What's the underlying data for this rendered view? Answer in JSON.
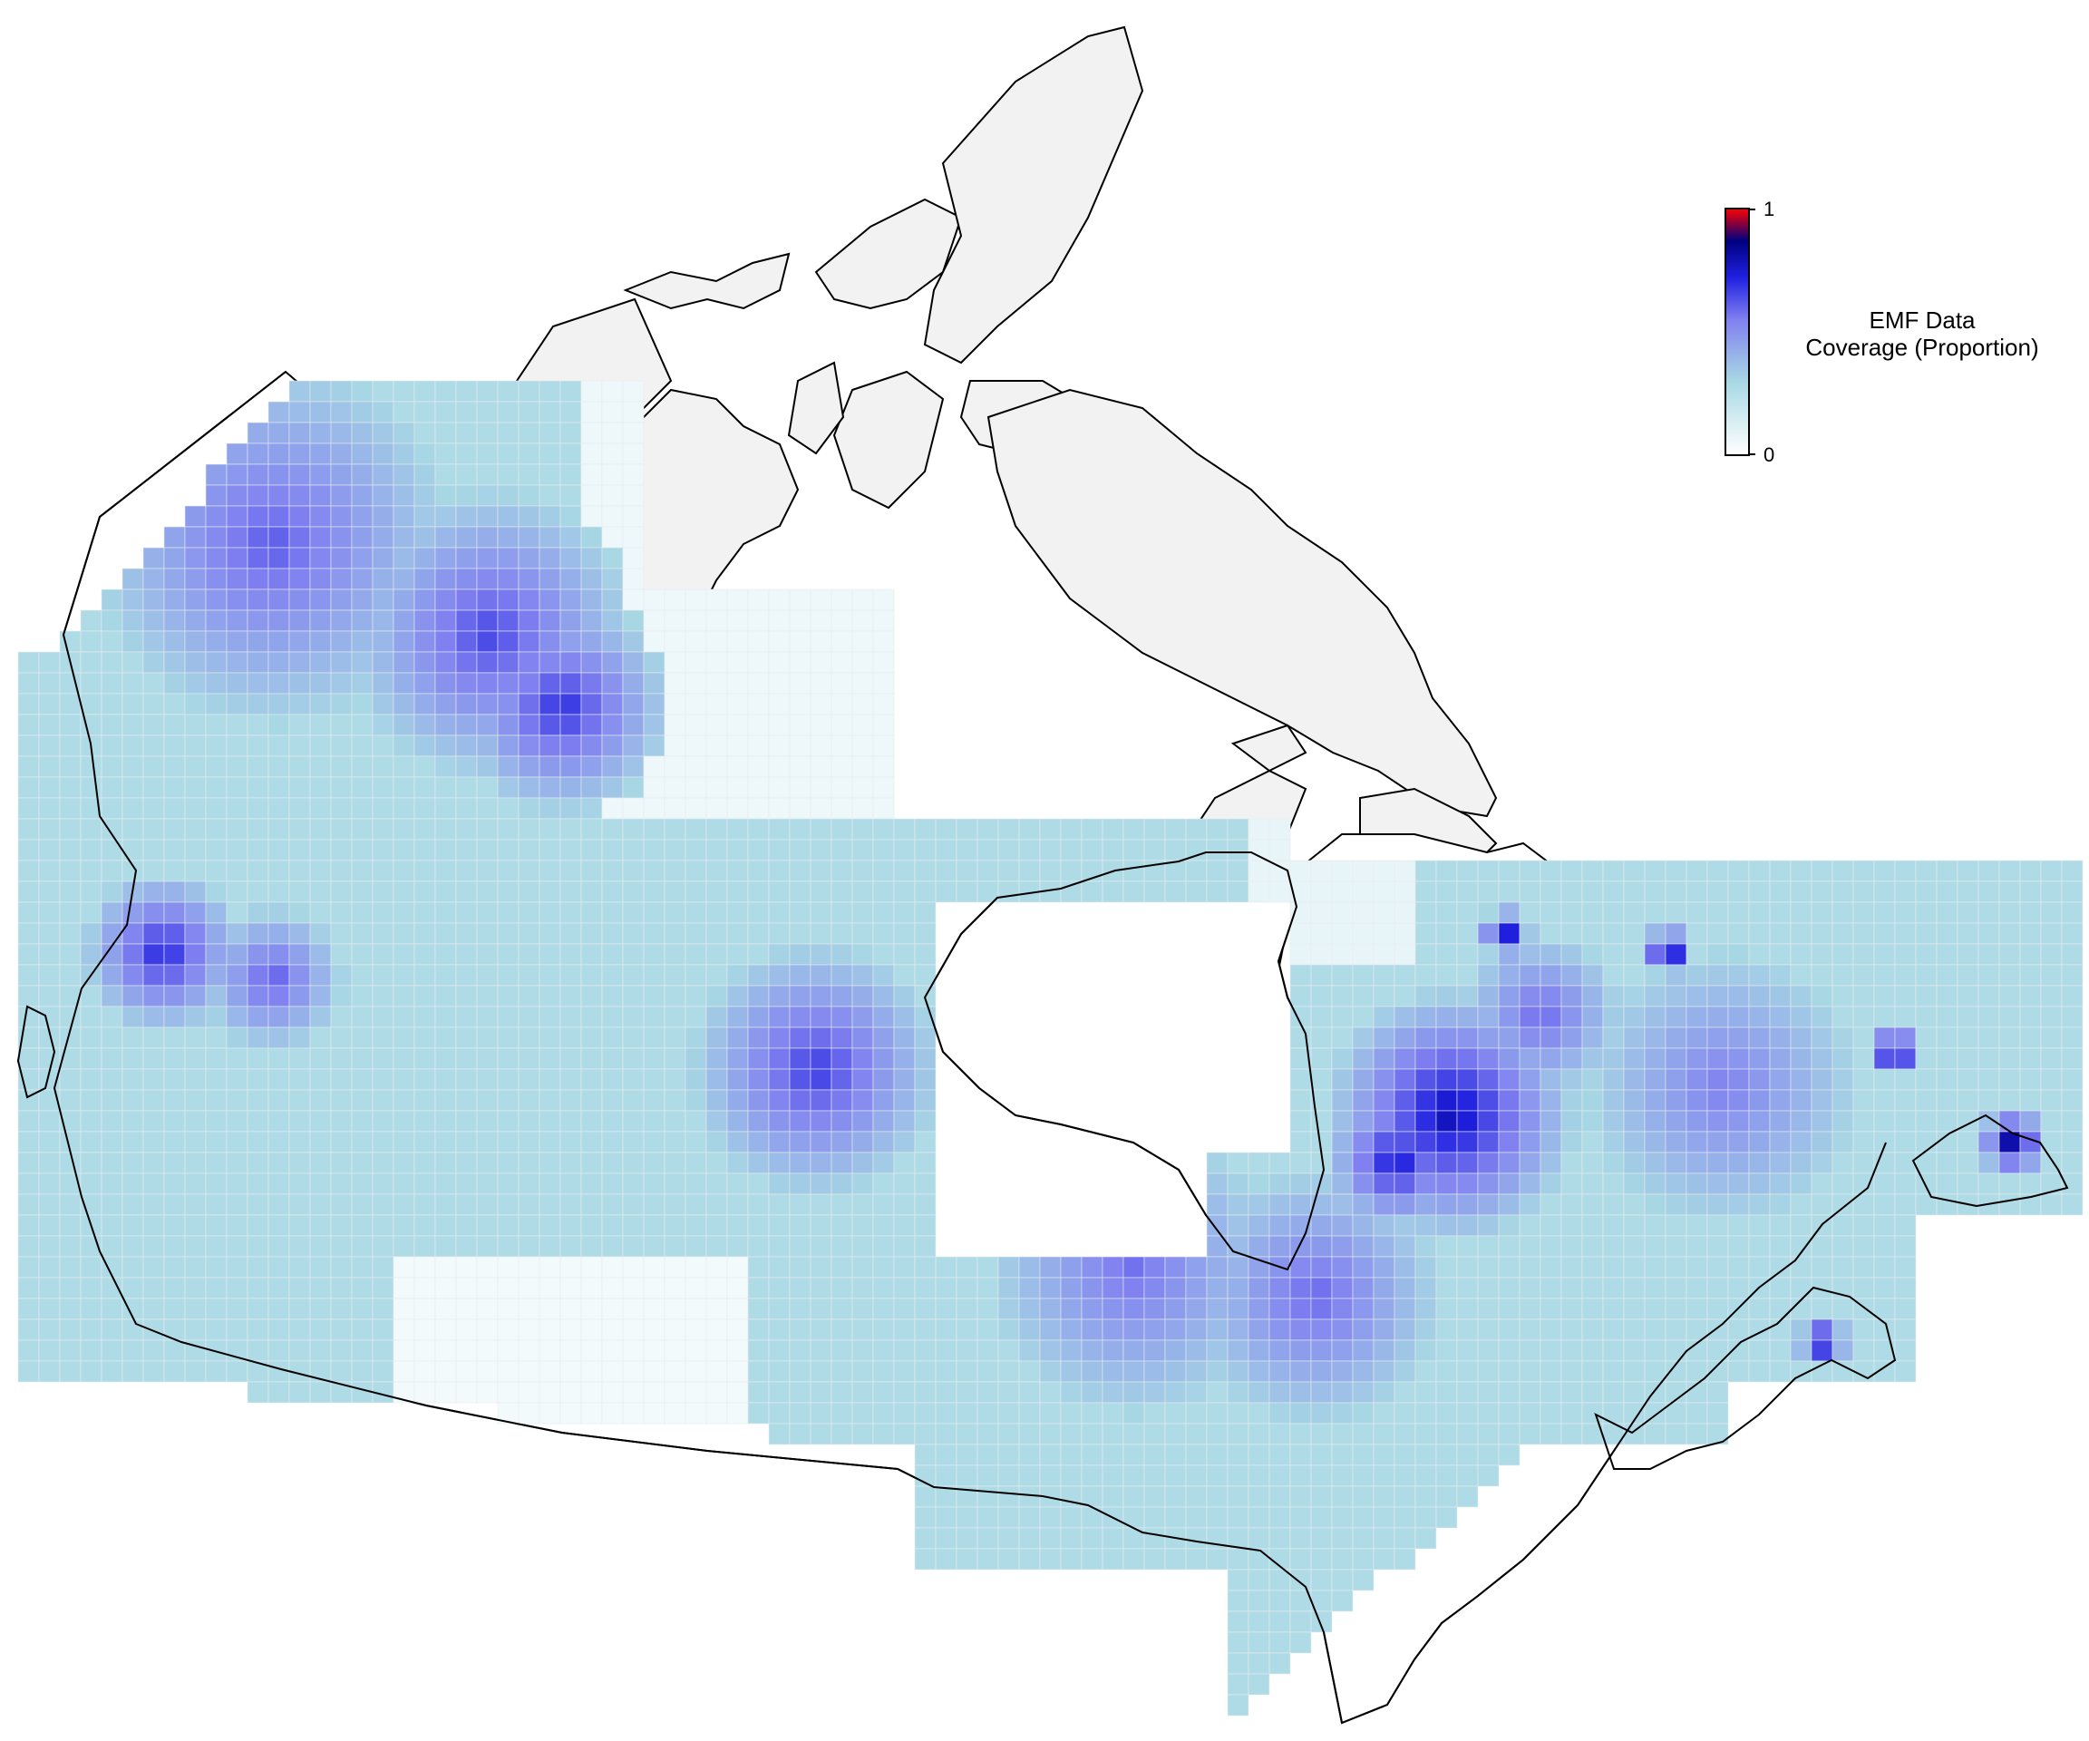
{
  "legend": {
    "title_line1": "EMF Data",
    "title_line2": "Coverage (Proportion)",
    "max_label": "1",
    "min_label": "0",
    "color_stops": [
      "#ffffff",
      "#a8d8e4",
      "#8080f0",
      "#2020e0",
      "#000080",
      "#ff0000"
    ]
  },
  "colors": {
    "land": "#f2f2f2",
    "coast": "#000000",
    "grid_line": "#e6ecef",
    "water": "#ffffff"
  }
}
